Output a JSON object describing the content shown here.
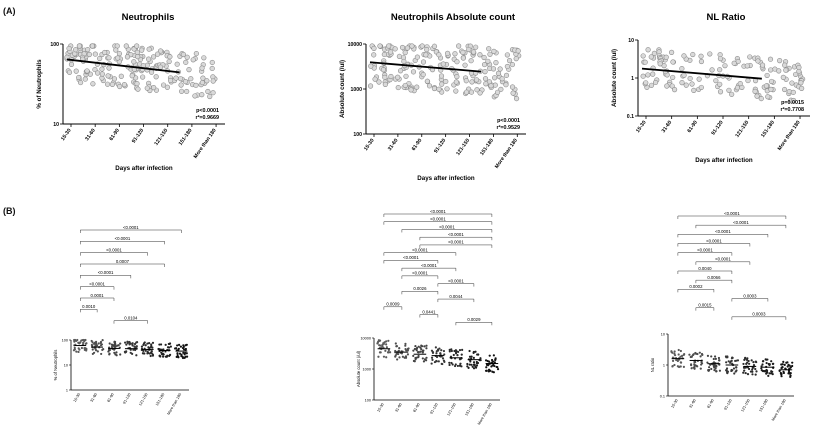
{
  "panels": {
    "a_label": "(A)",
    "b_label": "(B)"
  },
  "chart_data": [
    {
      "type": "scatter",
      "title": "Neutrophils",
      "xlabel": "Days after infection",
      "ylabel": "% of Neutrophils",
      "x_categories": [
        "15-30",
        "31-60",
        "61-90",
        "91-120",
        "121-150",
        "151-180",
        "More than 180"
      ],
      "y_scale": "log",
      "ylim": [
        10,
        100
      ],
      "y_ticks": [
        "10",
        "100"
      ],
      "regression": {
        "start": 65,
        "end": 38
      },
      "stats": [
        "p<0.0001",
        "r²=0.9669"
      ],
      "point_color": "#8a8a8a",
      "point_fill": "#d9d9d9"
    },
    {
      "type": "scatter",
      "title": "Neutrophils Absolute count",
      "xlabel": "Days after infection",
      "ylabel": "Absolute count (/ul)",
      "x_categories": [
        "15-30",
        "31-60",
        "61-90",
        "91-120",
        "121-150",
        "151-180",
        "More than 180"
      ],
      "y_scale": "log",
      "ylim": [
        100,
        10000
      ],
      "y_ticks": [
        "100",
        "1000",
        "10000"
      ],
      "regression": {
        "start": 4000,
        "end": 2000
      },
      "stats": [
        "p<0.0001",
        "r²=0.9529"
      ],
      "point_color": "#8a8a8a",
      "point_fill": "#d9d9d9"
    },
    {
      "type": "scatter",
      "title": "NL Ratio",
      "xlabel": "Days after infection",
      "ylabel": "Absolute count (/ul)",
      "x_categories": [
        "15-30",
        "31-60",
        "61-90",
        "91-120",
        "121-150",
        "151-180",
        "More than 180"
      ],
      "y_scale": "log",
      "ylim": [
        0.1,
        10
      ],
      "y_ticks": [
        "0.1",
        "1",
        "10"
      ],
      "regression": {
        "start": 1.8,
        "end": 0.75
      },
      "stats": [
        "p=0.0015",
        "r²=0.7708"
      ],
      "point_color": "#8a8a8a",
      "point_fill": "#d9d9d9"
    },
    {
      "type": "scatter",
      "title": "",
      "ylabel": "% of Neutrophils",
      "x_categories": [
        "15-30",
        "31-60",
        "61-90",
        "91-120",
        "121-150",
        "151-180",
        "More than 180"
      ],
      "y_scale": "log",
      "ylim": [
        1,
        100
      ],
      "y_ticks": [
        "1",
        "10",
        "100"
      ],
      "group_medians": [
        60,
        52,
        46,
        45,
        42,
        38,
        36
      ],
      "comparisons": [
        {
          "from": 0,
          "to": 6,
          "label": "<0.0001"
        },
        {
          "from": 0,
          "to": 5,
          "label": "<0.0001"
        },
        {
          "from": 0,
          "to": 4,
          "label": "<0.0001"
        },
        {
          "from": 0,
          "to": 5,
          "label": "0.0007"
        },
        {
          "from": 0,
          "to": 3,
          "label": "<0.0001"
        },
        {
          "from": 0,
          "to": 2,
          "label": "<0.0001"
        },
        {
          "from": 0,
          "to": 2,
          "label": "0.0001"
        },
        {
          "from": 0,
          "to": 1,
          "label": "0.0010"
        },
        {
          "from": 2,
          "to": 4,
          "label": "0.0104"
        }
      ]
    },
    {
      "type": "scatter",
      "title": "",
      "ylabel": "Absolute count (/ul)",
      "x_categories": [
        "15-30",
        "31-60",
        "61-90",
        "91-120",
        "121-150",
        "151-180",
        "More than 180"
      ],
      "y_scale": "log",
      "ylim": [
        100,
        10000
      ],
      "y_ticks": [
        "100",
        "1000",
        "10000"
      ],
      "group_medians": [
        4500,
        3500,
        3000,
        2700,
        2300,
        2000,
        1500
      ],
      "comparisons": [
        {
          "from": 0,
          "to": 6,
          "label": "<0.0001"
        },
        {
          "from": 0,
          "to": 6,
          "label": "<0.0001"
        },
        {
          "from": 1,
          "to": 6,
          "label": "<0.0001"
        },
        {
          "from": 2,
          "to": 6,
          "label": "<0.0001"
        },
        {
          "from": 2,
          "to": 6,
          "label": "<0.0001"
        },
        {
          "from": 0,
          "to": 4,
          "label": "<0.0001"
        },
        {
          "from": 0,
          "to": 3,
          "label": "<0.0001"
        },
        {
          "from": 1,
          "to": 4,
          "label": "<0.0001"
        },
        {
          "from": 1,
          "to": 3,
          "label": "<0.0001"
        },
        {
          "from": 3,
          "to": 5,
          "label": "<0.0001"
        },
        {
          "from": 1,
          "to": 3,
          "label": "0.0026"
        },
        {
          "from": 3,
          "to": 5,
          "label": "0.0044"
        },
        {
          "from": 0,
          "to": 1,
          "label": "0.0009"
        },
        {
          "from": 2,
          "to": 3,
          "label": "0.0441"
        },
        {
          "from": 4,
          "to": 6,
          "label": "0.0029"
        }
      ]
    },
    {
      "type": "scatter",
      "title": "",
      "ylabel": "NL ratio",
      "x_categories": [
        "15-30",
        "31-60",
        "61-90",
        "91-120",
        "121-150",
        "151-180",
        "More than 180"
      ],
      "y_scale": "log",
      "ylim": [
        0.1,
        10
      ],
      "y_ticks": [
        "0.1",
        "1",
        "10"
      ],
      "group_medians": [
        1.6,
        1.4,
        1.1,
        1.0,
        0.9,
        0.85,
        0.7
      ],
      "comparisons": [
        {
          "from": 0,
          "to": 6,
          "label": "<0.0001"
        },
        {
          "from": 1,
          "to": 6,
          "label": "<0.0001"
        },
        {
          "from": 0,
          "to": 5,
          "label": "<0.0001"
        },
        {
          "from": 0,
          "to": 4,
          "label": "<0.0001"
        },
        {
          "from": 0,
          "to": 3,
          "label": "<0.0001"
        },
        {
          "from": 1,
          "to": 4,
          "label": "<0.0001"
        },
        {
          "from": 0,
          "to": 3,
          "label": "0.0040"
        },
        {
          "from": 1,
          "to": 3,
          "label": "0.0066"
        },
        {
          "from": 0,
          "to": 2,
          "label": "0.0002"
        },
        {
          "from": 3,
          "to": 5,
          "label": "0.0003"
        },
        {
          "from": 1,
          "to": 2,
          "label": "0.0015"
        },
        {
          "from": 3,
          "to": 6,
          "label": "0.0003"
        }
      ]
    }
  ]
}
